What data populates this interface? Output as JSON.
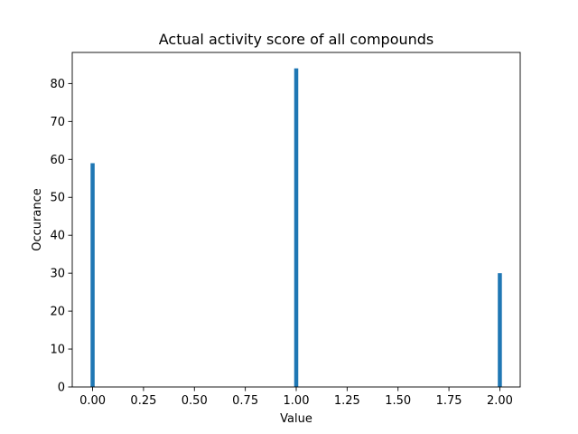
{
  "chart_data": {
    "type": "bar",
    "title": "Actual activity score of all compounds",
    "xlabel": "Value",
    "ylabel": "Occurance",
    "xlim": [
      -0.1,
      2.1
    ],
    "ylim": [
      0,
      88.2
    ],
    "bin_width": 0.02,
    "bar_color": "#1f77b4",
    "xticks": [
      0.0,
      0.25,
      0.5,
      0.75,
      1.0,
      1.25,
      1.5,
      1.75,
      2.0
    ],
    "xtick_labels": [
      "0.00",
      "0.25",
      "0.50",
      "0.75",
      "1.00",
      "1.25",
      "1.50",
      "1.75",
      "2.00"
    ],
    "yticks": [
      0,
      10,
      20,
      30,
      40,
      50,
      60,
      70,
      80
    ],
    "ytick_labels": [
      "0",
      "10",
      "20",
      "30",
      "40",
      "50",
      "60",
      "70",
      "80"
    ],
    "grid": false,
    "legend": "none",
    "bars": [
      {
        "x": 0.0,
        "value": 59
      },
      {
        "x": 1.0,
        "value": 84
      },
      {
        "x": 2.0,
        "value": 30
      }
    ]
  }
}
